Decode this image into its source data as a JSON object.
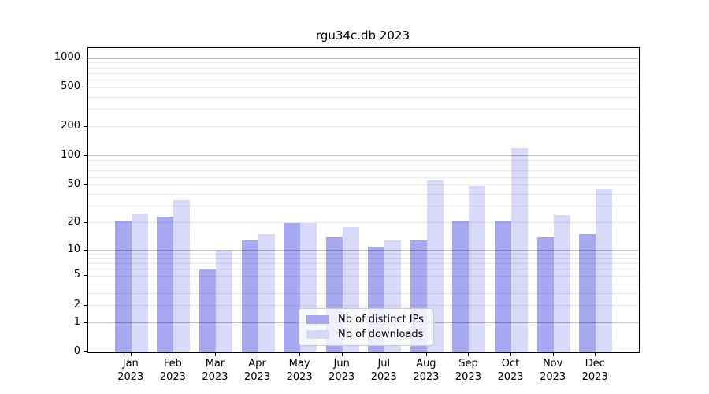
{
  "title": "rgu34c.db 2023",
  "chart_data": {
    "type": "bar",
    "title": "rgu34c.db 2023",
    "categories": [
      "Jan 2023",
      "Feb 2023",
      "Mar 2023",
      "Apr 2023",
      "May 2023",
      "Jun 2023",
      "Jul 2023",
      "Aug 2023",
      "Sep 2023",
      "Oct 2023",
      "Nov 2023",
      "Dec 2023"
    ],
    "series": [
      {
        "name": "Nb of distinct IPs",
        "color": "#a8a8f0",
        "values": [
          21,
          23,
          6,
          13,
          20,
          14,
          11,
          13,
          21,
          21,
          14,
          15
        ]
      },
      {
        "name": "Nb of downloads",
        "color": "#d8d8f8",
        "values": [
          25,
          35,
          10,
          15,
          20,
          18,
          13,
          56,
          49,
          120,
          24,
          45
        ]
      }
    ],
    "y_axis": {
      "scale": "log1p",
      "labeled_ticks": [
        0,
        1,
        2,
        5,
        10,
        20,
        50,
        100,
        200,
        500,
        1000
      ],
      "major_gridlines": [
        1,
        10,
        100,
        1000
      ],
      "max_value": 1273
    },
    "xlabel": "",
    "ylabel": "",
    "grid": true,
    "legend_position": "lower center inside plot"
  },
  "colors": {
    "major_grid": "rgba(0,0,0,0.25)",
    "minor_grid": "rgba(0,0,0,0.08)",
    "spine": "#000000",
    "text": "#000000",
    "legend_border": "#cccccc",
    "legend_background": "rgba(255,255,255,0.8)"
  }
}
